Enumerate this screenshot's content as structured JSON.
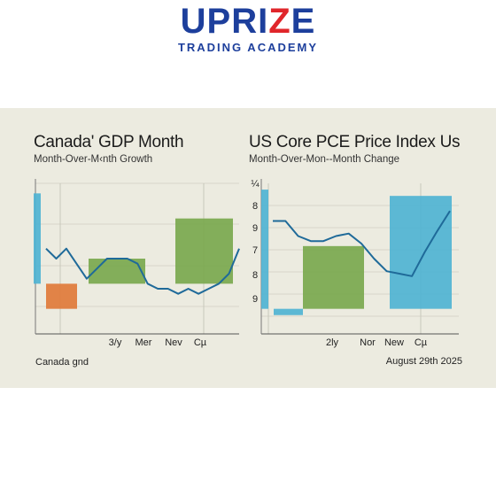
{
  "logo": {
    "word_left": "UPRI",
    "word_mid": "Z",
    "word_right": "E",
    "tagline": "TRADING ACADEMY",
    "colors": {
      "primary": "#1d3f9c",
      "accent": "#e0262b"
    }
  },
  "footer": {
    "left": "Canada gnd",
    "right": "August 29th 2025"
  },
  "chart_data": [
    {
      "type": "bar",
      "title": "Canada' GDP Month",
      "subtitle": "Month-Over-M‹nth Growth",
      "x_tick_labels": [
        "3/y",
        "Mer",
        "Nev",
        "Cµ"
      ],
      "bars": [
        {
          "color": "#4fb3d3",
          "value": 0.9
        },
        {
          "color": "#e07a3a",
          "value": -0.25
        },
        {
          "color": "#7aa84e",
          "value": 0.25
        },
        {
          "color": "#7aa84e",
          "value": 0.65
        }
      ],
      "line": {
        "color": "#1f6a99",
        "values": [
          0.35,
          0.25,
          0.35,
          0.2,
          0.05,
          0.15,
          0.25,
          0.25,
          0.25,
          0.2,
          0.0,
          -0.05,
          -0.05,
          -0.1,
          -0.05,
          -0.1,
          -0.05,
          0.0,
          0.1,
          0.35
        ]
      },
      "ylim": [
        -0.5,
        1.0
      ],
      "grid": true
    },
    {
      "type": "bar",
      "title": "US Core PCE Price Index Us",
      "subtitle": "Month-Over-Mon‑-Month Change",
      "y_tick_labels": [
        "¼",
        "8",
        "9",
        "7",
        "8",
        "9"
      ],
      "x_tick_labels": [
        "2ly",
        "Nor",
        "New",
        "Cµ"
      ],
      "bars": [
        {
          "color": "#4fb3d3",
          "value": 0.95
        },
        {
          "color": "#4fb3d3",
          "value": -0.05
        },
        {
          "color": "#7aa84e",
          "value": 0.5
        },
        {
          "color": "#4fb3d3",
          "value": 0.9
        }
      ],
      "line": {
        "color": "#1f6a99",
        "values": [
          0.7,
          0.7,
          0.58,
          0.54,
          0.54,
          0.58,
          0.6,
          0.52,
          0.4,
          0.3,
          0.28,
          0.26,
          0.45,
          0.62,
          0.78
        ]
      },
      "ylim": [
        -0.2,
        1.0
      ],
      "grid": true
    }
  ]
}
